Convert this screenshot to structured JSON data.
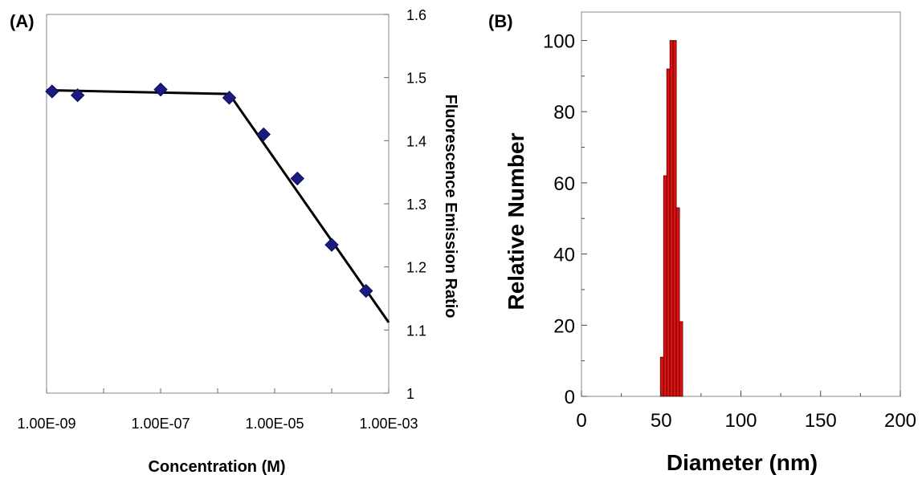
{
  "chart_data": [
    {
      "panel_label": "(A)",
      "type": "scatter",
      "xlabel": "Concentration (M)",
      "ylabel": "Fluorescence Emission Ratio",
      "x_scale": "log",
      "xlim": [
        1e-09,
        0.001
      ],
      "ylim": [
        1.0,
        1.6
      ],
      "x_tick_labels": [
        "1.00E-09",
        "1.00E-07",
        "1.00E-05",
        "1.00E-03"
      ],
      "x_tick_values": [
        1e-09,
        1e-07,
        1e-05,
        0.001
      ],
      "y_tick_labels": [
        "1",
        "1.1",
        "1.2",
        "1.3",
        "1.4",
        "1.5",
        "1.6"
      ],
      "y_tick_values": [
        1.0,
        1.1,
        1.2,
        1.3,
        1.4,
        1.5,
        1.6
      ],
      "y_axis_side": "right",
      "grid": false,
      "marker": "diamond",
      "marker_color": "#1a1a80",
      "line_color": "#000000",
      "points": [
        {
          "x": 1.25e-09,
          "y": 1.478
        },
        {
          "x": 3.5e-09,
          "y": 1.472
        },
        {
          "x": 1e-07,
          "y": 1.481
        },
        {
          "x": 1.6e-06,
          "y": 1.468
        },
        {
          "x": 6.4e-06,
          "y": 1.41
        },
        {
          "x": 2.5e-05,
          "y": 1.34
        },
        {
          "x": 0.0001,
          "y": 1.235
        },
        {
          "x": 0.0004,
          "y": 1.162
        }
      ],
      "fit_line": [
        {
          "x": 1e-09,
          "y": 1.48
        },
        {
          "x": 1.6e-06,
          "y": 1.474
        },
        {
          "x": 0.001,
          "y": 1.112
        }
      ]
    },
    {
      "panel_label": "(B)",
      "type": "bar",
      "xlabel": "Diameter (nm)",
      "ylabel": "Relative Number",
      "xlim": [
        0,
        200
      ],
      "ylim": [
        0,
        108
      ],
      "x_tick_labels": [
        "0",
        "50",
        "100",
        "150",
        "200"
      ],
      "x_tick_values": [
        0,
        50,
        100,
        150,
        200
      ],
      "y_tick_labels": [
        "0",
        "20",
        "40",
        "60",
        "80",
        "100"
      ],
      "y_tick_values": [
        0,
        20,
        40,
        60,
        80,
        100
      ],
      "grid": false,
      "bar_color": "#dd1111",
      "bar_width": 2,
      "bars": [
        {
          "x": 50.5,
          "value": 11
        },
        {
          "x": 52.5,
          "value": 62
        },
        {
          "x": 54.5,
          "value": 92
        },
        {
          "x": 56.5,
          "value": 100
        },
        {
          "x": 58.5,
          "value": 100
        },
        {
          "x": 60.5,
          "value": 53
        },
        {
          "x": 62.5,
          "value": 21
        }
      ]
    }
  ]
}
